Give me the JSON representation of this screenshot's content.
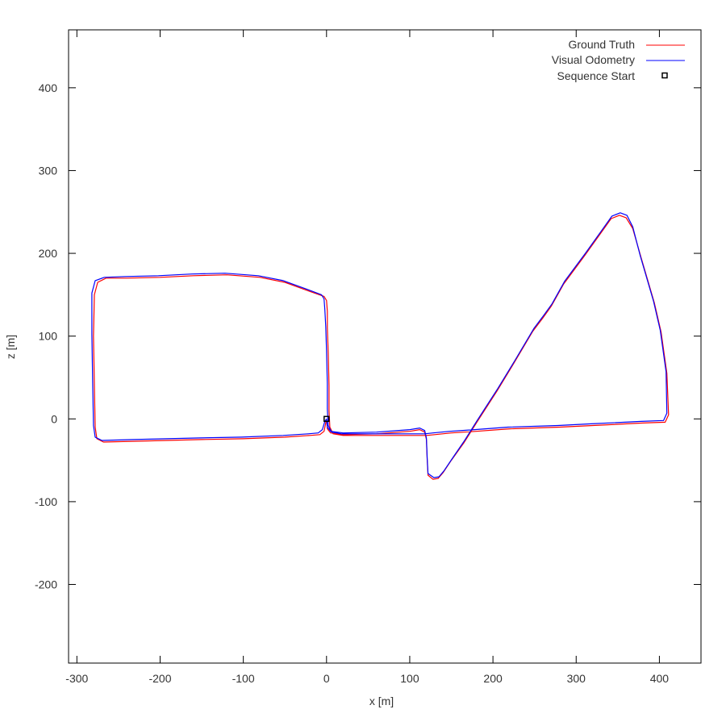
{
  "chart_data": {
    "type": "line",
    "title": "",
    "xlabel": "x [m]",
    "ylabel": "z [m]",
    "xlim": [
      -310,
      450
    ],
    "ylim": [
      -295,
      470
    ],
    "x_ticks": [
      -300,
      -200,
      -100,
      0,
      100,
      200,
      300,
      400
    ],
    "y_ticks": [
      -200,
      -100,
      0,
      100,
      200,
      300,
      400
    ],
    "x_tick_labels": [
      "-300",
      "-200",
      "-100",
      "0",
      "100",
      "200",
      "300",
      "400"
    ],
    "y_tick_labels": [
      "-200",
      "-100",
      "0",
      "100",
      "200",
      "300",
      "400"
    ],
    "grid": false,
    "legend_position": "top-right",
    "series": [
      {
        "name": "Ground Truth",
        "color": "#ff0000",
        "points": [
          [
            0,
            0
          ],
          [
            1,
            -12
          ],
          [
            5,
            -17
          ],
          [
            20,
            -19
          ],
          [
            60,
            -18
          ],
          [
            100,
            -15
          ],
          [
            112,
            -13
          ],
          [
            118,
            -16
          ],
          [
            120,
            -25
          ],
          [
            121,
            -50
          ],
          [
            122,
            -68
          ],
          [
            128,
            -73
          ],
          [
            134,
            -72
          ],
          [
            140,
            -65
          ],
          [
            150,
            -50
          ],
          [
            165,
            -29
          ],
          [
            180,
            -5
          ],
          [
            205,
            34
          ],
          [
            225,
            67
          ],
          [
            248,
            106
          ],
          [
            260,
            122
          ],
          [
            270,
            136
          ],
          [
            285,
            163
          ],
          [
            310,
            197
          ],
          [
            330,
            225
          ],
          [
            342,
            242
          ],
          [
            352,
            246
          ],
          [
            360,
            243
          ],
          [
            368,
            230
          ],
          [
            378,
            195
          ],
          [
            394,
            140
          ],
          [
            402,
            105
          ],
          [
            409,
            55
          ],
          [
            411,
            5
          ],
          [
            407,
            -4
          ],
          [
            380,
            -5
          ],
          [
            320,
            -8
          ],
          [
            280,
            -10
          ],
          [
            220,
            -12
          ],
          [
            180,
            -15
          ],
          [
            150,
            -17
          ],
          [
            130,
            -19
          ],
          [
            120,
            -20
          ],
          [
            108,
            -20
          ],
          [
            100,
            -20
          ],
          [
            50,
            -20
          ],
          [
            20,
            -20
          ],
          [
            8,
            -18
          ],
          [
            4,
            -10
          ],
          [
            3,
            10
          ],
          [
            3,
            40
          ],
          [
            2,
            80
          ],
          [
            1,
            110
          ],
          [
            1,
            130
          ],
          [
            0,
            143
          ],
          [
            -3,
            148
          ],
          [
            -20,
            154
          ],
          [
            -50,
            165
          ],
          [
            -80,
            171
          ],
          [
            -120,
            174
          ],
          [
            -160,
            173
          ],
          [
            -200,
            171
          ],
          [
            -240,
            170
          ],
          [
            -265,
            170
          ],
          [
            -275,
            165
          ],
          [
            -279,
            150
          ],
          [
            -280,
            100
          ],
          [
            -279,
            40
          ],
          [
            -278,
            -10
          ],
          [
            -276,
            -24
          ],
          [
            -268,
            -28
          ],
          [
            -230,
            -27
          ],
          [
            -150,
            -25
          ],
          [
            -100,
            -24
          ],
          [
            -50,
            -22
          ],
          [
            -20,
            -20
          ],
          [
            -8,
            -19
          ],
          [
            -3,
            -15
          ],
          [
            -1,
            -5
          ],
          [
            0,
            0
          ]
        ]
      },
      {
        "name": "Visual Odometry",
        "color": "#0000ff",
        "points": [
          [
            0,
            0
          ],
          [
            1,
            -10
          ],
          [
            5,
            -15
          ],
          [
            20,
            -17
          ],
          [
            60,
            -16
          ],
          [
            100,
            -13
          ],
          [
            112,
            -11
          ],
          [
            118,
            -14
          ],
          [
            120,
            -23
          ],
          [
            121,
            -48
          ],
          [
            122,
            -66
          ],
          [
            129,
            -71
          ],
          [
            135,
            -70
          ],
          [
            141,
            -63
          ],
          [
            151,
            -48
          ],
          [
            166,
            -26
          ],
          [
            181,
            -2
          ],
          [
            206,
            37
          ],
          [
            226,
            70
          ],
          [
            249,
            109
          ],
          [
            261,
            125
          ],
          [
            271,
            139
          ],
          [
            286,
            166
          ],
          [
            311,
            200
          ],
          [
            331,
            228
          ],
          [
            343,
            245
          ],
          [
            353,
            249
          ],
          [
            361,
            246
          ],
          [
            368,
            232
          ],
          [
            377,
            197
          ],
          [
            393,
            142
          ],
          [
            401,
            107
          ],
          [
            408,
            57
          ],
          [
            409,
            7
          ],
          [
            405,
            -2
          ],
          [
            378,
            -3
          ],
          [
            318,
            -6
          ],
          [
            278,
            -8
          ],
          [
            218,
            -10
          ],
          [
            178,
            -13
          ],
          [
            148,
            -15
          ],
          [
            128,
            -17
          ],
          [
            118,
            -18
          ],
          [
            106,
            -18
          ],
          [
            98,
            -18
          ],
          [
            48,
            -18
          ],
          [
            18,
            -18
          ],
          [
            6,
            -16
          ],
          [
            2,
            -8
          ],
          [
            1,
            12
          ],
          [
            1,
            42
          ],
          [
            0,
            82
          ],
          [
            -1,
            112
          ],
          [
            -2,
            132
          ],
          [
            -3,
            145
          ],
          [
            -6,
            150
          ],
          [
            -22,
            156
          ],
          [
            -52,
            167
          ],
          [
            -82,
            173
          ],
          [
            -122,
            176
          ],
          [
            -162,
            175
          ],
          [
            -202,
            173
          ],
          [
            -242,
            172
          ],
          [
            -267,
            171
          ],
          [
            -278,
            167
          ],
          [
            -282,
            152
          ],
          [
            -282,
            102
          ],
          [
            -281,
            42
          ],
          [
            -280,
            -8
          ],
          [
            -278,
            -22
          ],
          [
            -270,
            -26
          ],
          [
            -232,
            -25
          ],
          [
            -152,
            -23
          ],
          [
            -102,
            -22
          ],
          [
            -52,
            -20
          ],
          [
            -22,
            -18
          ],
          [
            -10,
            -17
          ],
          [
            -5,
            -13
          ],
          [
            -2,
            -3
          ],
          [
            0,
            0
          ]
        ]
      }
    ],
    "markers": [
      {
        "name": "Sequence Start",
        "x": 0,
        "y": 0,
        "shape": "open-square",
        "color": "#000000"
      }
    ]
  }
}
